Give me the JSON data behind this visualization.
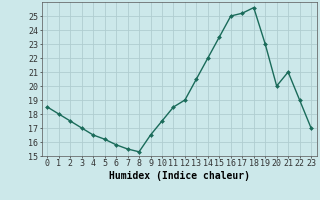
{
  "x": [
    0,
    1,
    2,
    3,
    4,
    5,
    6,
    7,
    8,
    9,
    10,
    11,
    12,
    13,
    14,
    15,
    16,
    17,
    18,
    19,
    20,
    21,
    22,
    23
  ],
  "y": [
    18.5,
    18.0,
    17.5,
    17.0,
    16.5,
    16.2,
    15.8,
    15.5,
    15.3,
    16.5,
    17.5,
    18.5,
    19.0,
    20.5,
    22.0,
    23.5,
    25.0,
    25.2,
    25.6,
    23.0,
    20.0,
    21.0,
    19.0,
    17.0
  ],
  "xlabel": "Humidex (Indice chaleur)",
  "ylim": [
    15,
    26
  ],
  "yticks": [
    15,
    16,
    17,
    18,
    19,
    20,
    21,
    22,
    23,
    24,
    25
  ],
  "xticks": [
    0,
    1,
    2,
    3,
    4,
    5,
    6,
    7,
    8,
    9,
    10,
    11,
    12,
    13,
    14,
    15,
    16,
    17,
    18,
    19,
    20,
    21,
    22,
    23
  ],
  "line_color": "#1a6b5a",
  "bg_color": "#cce8ea",
  "grid_color": "#b0cdd0",
  "marker": "D",
  "marker_size": 2.0,
  "line_width": 1.0,
  "xlabel_fontsize": 7,
  "tick_fontsize": 6
}
